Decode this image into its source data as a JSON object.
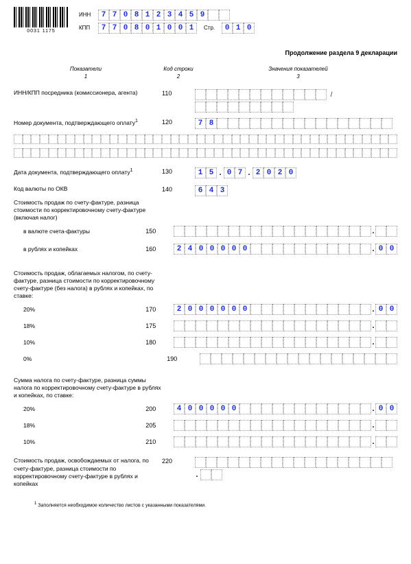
{
  "barcode_number": "0031 1175",
  "inn_label": "ИНН",
  "kpp_label": "КПП",
  "page_label": "Стр.",
  "inn": [
    "7",
    "7",
    "0",
    "8",
    "1",
    "2",
    "3",
    "4",
    "5",
    "9",
    "",
    ""
  ],
  "kpp": [
    "7",
    "7",
    "0",
    "8",
    "0",
    "1",
    "0",
    "0",
    "1"
  ],
  "page": [
    "0",
    "1",
    "0"
  ],
  "section_title": "Продолжение раздела 9 декларации",
  "col_h1": "Показатели",
  "col_h2": "Код строки",
  "col_h3": "Значения показателей",
  "col_n1": "1",
  "col_n2": "2",
  "col_n3": "3",
  "r110_label": "ИНН/КПП посредника (комиссионера, агента)",
  "r110_code": "110",
  "r120_label": "Номер документа, подтверждающего оплату",
  "r120_code": "120",
  "r120_vals": [
    "7",
    "8"
  ],
  "r130_label": "Дата документа, подтверждающего оплату",
  "r130_code": "130",
  "r130_d": [
    "1",
    "5"
  ],
  "r130_m": [
    "0",
    "7"
  ],
  "r130_y": [
    "2",
    "0",
    "2",
    "0"
  ],
  "r140_label": "Код валюты по ОКВ",
  "r140_code": "140",
  "r140_vals": [
    "6",
    "4",
    "3"
  ],
  "group1": "Стоимость продаж по счету-фактуре, разница стоимости по корректировочному счету-фактуре (включая налог)",
  "r150_label": "в валюте счета-фактуры",
  "r150_code": "150",
  "r160_label": "в рублях и копейках",
  "r160_code": "160",
  "r160_int": [
    "2",
    "4",
    "0",
    "0",
    "0",
    "0",
    "0",
    "",
    "",
    "",
    "",
    "",
    "",
    "",
    "",
    "",
    "",
    ""
  ],
  "r160_kop": [
    "0",
    "0"
  ],
  "group2": "Стоимость продаж, облагаемых налогом, по счету-фактуре, разница стоимости по корректировочному счету-фактуре (без налога) в рублях и копейках, по ставке:",
  "rate20": "20%",
  "r170_code": "170",
  "r170_int": [
    "2",
    "0",
    "0",
    "0",
    "0",
    "0",
    "0",
    "",
    "",
    "",
    "",
    "",
    "",
    "",
    "",
    "",
    "",
    ""
  ],
  "r170_kop": [
    "0",
    "0"
  ],
  "rate18": "18%",
  "r175_code": "175",
  "rate10": "10%",
  "r180_code": "180",
  "rate0": "0%",
  "r190_code": "190",
  "group3": "Сумма налога по счету-фактуре, разница суммы налога по корректировочному счету-фактуре в рублях и копейках, по ставке:",
  "r200_code": "200",
  "r200_int": [
    "4",
    "0",
    "0",
    "0",
    "0",
    "0",
    "",
    "",
    "",
    "",
    "",
    "",
    "",
    "",
    "",
    "",
    "",
    ""
  ],
  "r200_kop": [
    "0",
    "0"
  ],
  "r205_code": "205",
  "r210_code": "210",
  "r220_label": "Стоимость продаж, освобождаемых от налога, по счету-фактуре, разница стоимости по корректировочному счету-фактуре в рублях и копейках",
  "r220_code": "220",
  "footnote": "Заполняется необходимое количество листов с указанными показателями.",
  "colors": {
    "ink": "#2030cc"
  }
}
